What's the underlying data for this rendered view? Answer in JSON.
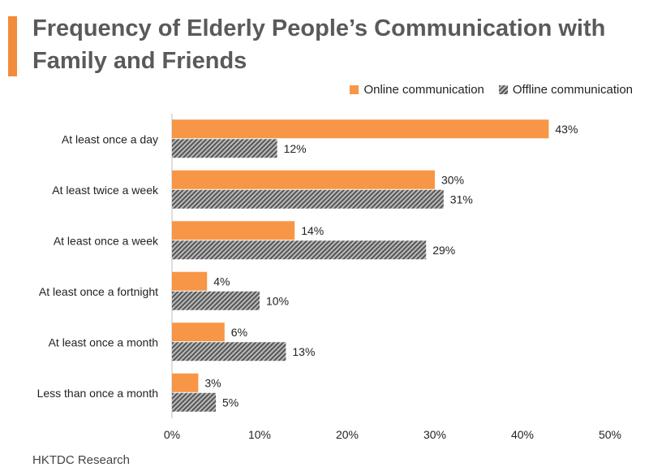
{
  "title_line1": "Frequency of Elderly People’s Communication with",
  "title_line2": "Family and Friends",
  "source": "HKTDC Research",
  "colors": {
    "accent": "#F28C3C",
    "online": "#F79646",
    "offline_dark": "#555555",
    "offline_light": "#BBBBBB"
  },
  "chart_data": {
    "type": "bar",
    "orientation": "horizontal",
    "categories": [
      "At least once a day",
      "At least twice a week",
      "At least once a week",
      "At least once a fortnight",
      "At least once a month",
      "Less than once a month"
    ],
    "series": [
      {
        "name": "Online communication",
        "values": [
          43,
          30,
          14,
          4,
          6,
          3
        ],
        "labels": [
          "43%",
          "30%",
          "14%",
          "4%",
          "6%",
          "3%"
        ],
        "color": "#F79646"
      },
      {
        "name": "Offline communication",
        "values": [
          12,
          31,
          29,
          10,
          13,
          5
        ],
        "labels": [
          "12%",
          "31%",
          "29%",
          "10%",
          "13%",
          "5%"
        ],
        "color": "hatched-gray"
      }
    ],
    "xlim": [
      0,
      50
    ],
    "xticks": [
      0,
      10,
      20,
      30,
      40,
      50
    ],
    "xtick_labels": [
      "0%",
      "10%",
      "20%",
      "30%",
      "40%",
      "50%"
    ],
    "legend_position": "top-right",
    "grid": false
  }
}
